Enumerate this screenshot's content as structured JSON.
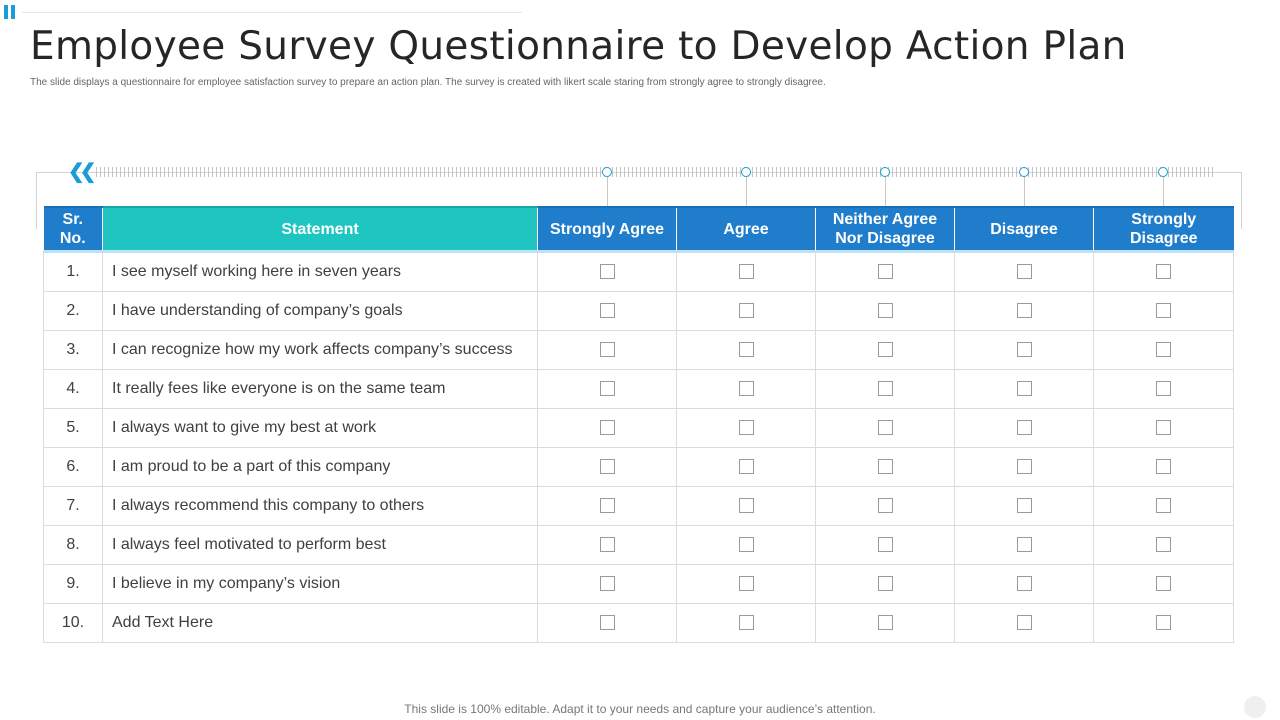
{
  "slide": {
    "title": "Employee Survey Questionnaire to Develop Action Plan",
    "subtitle": "The slide displays a questionnaire for employee satisfaction survey to prepare an action plan. The survey is created with likert scale staring from strongly agree to strongly disagree.",
    "footer": "This slide is 100% editable. Adapt it to your needs and capture your audience’s attention."
  },
  "colors": {
    "accent": "#1a9cd8",
    "header_blue": "#1f7dcb",
    "header_teal": "#1fc6c1"
  },
  "table": {
    "headers": {
      "sr": "Sr. No.",
      "statement": "Statement",
      "strongly_agree": "Strongly Agree",
      "agree": "Agree",
      "neutral": "Neither Agree Nor Disagree",
      "disagree": "Disagree",
      "strongly_disagree": "Strongly Disagree"
    },
    "rows": [
      {
        "num": "1.",
        "statement": "I see myself working here in seven years"
      },
      {
        "num": "2.",
        "statement": "I have understanding of company’s goals"
      },
      {
        "num": "3.",
        "statement": "I can recognize how my work affects company’s success"
      },
      {
        "num": "4.",
        "statement": "It really fees like everyone is on the same team"
      },
      {
        "num": "5.",
        "statement": "I always want to give my best at work"
      },
      {
        "num": "6.",
        "statement": "I am proud to be a part of this company"
      },
      {
        "num": "7.",
        "statement": "I always recommend this company to others"
      },
      {
        "num": "8.",
        "statement": "I always feel motivated to perform best"
      },
      {
        "num": "9.",
        "statement": "I believe in my company’s vision"
      },
      {
        "num": "10.",
        "statement": "Add Text Here"
      }
    ]
  }
}
